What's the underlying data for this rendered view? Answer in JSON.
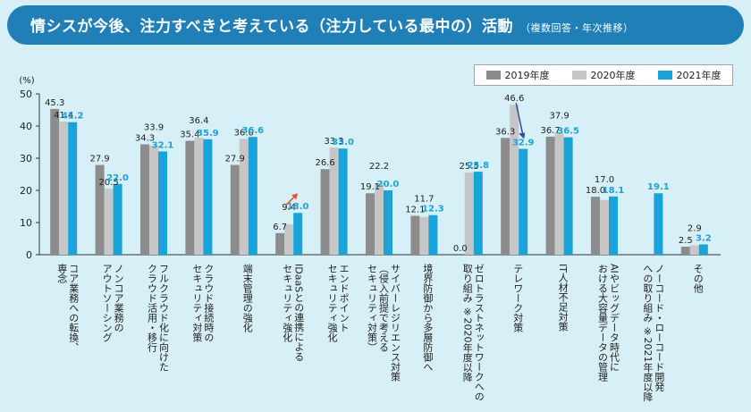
{
  "header": {
    "title": "情シスが今後、注力すべきと考えている（注力している最中の）活動",
    "subtitle": "（複数回答・年次推移）"
  },
  "colors": {
    "banner": "#1f7fb6",
    "background": "#d7eff6",
    "series_2019": "#8c8c8c",
    "series_2020": "#c6c6c6",
    "series_2021": "#1aa3d9",
    "arrow_up": "#e8502a",
    "arrow_down": "#2f4c9a"
  },
  "chart_data": {
    "type": "bar",
    "ylabel": "(%)",
    "ylim": [
      0,
      50
    ],
    "yticks": [
      "0",
      "10",
      "20",
      "30",
      "40",
      "50"
    ],
    "grid": false,
    "legend_position": "top-right",
    "categories": [
      [
        "コア業務への転換、",
        "専念"
      ],
      [
        "ノンコア業務の",
        "アウトソーシング"
      ],
      [
        "フルクラウド化に向けた",
        "クラウド活用・移行"
      ],
      [
        "クラウド接続時の",
        "セキュリティ対策"
      ],
      [
        "端末管理の強化"
      ],
      [
        "IDaaSとの連携による",
        "セキュリティ強化"
      ],
      [
        "エンドポイント",
        "セキュリティ強化"
      ],
      [
        "サイバーレジリエンス対策",
        "（侵入前提で考える",
        "セキュリティ対策）"
      ],
      [
        "境界防御から多層防御へ"
      ],
      [
        "ゼロトラストネットワークへの",
        "取り組み ※2020年度以降"
      ],
      [
        "テレワーク対策"
      ],
      [
        "IT人材不足対策"
      ],
      [
        "AIやビッグデータ時代に",
        "おける大容量データの管理"
      ],
      [
        "ノーコード・ローコード開発",
        "への取り組み ※2021年度以降"
      ],
      [
        "その他"
      ]
    ],
    "series": [
      {
        "name": "2019年度",
        "values": [
          45.3,
          27.9,
          34.3,
          35.4,
          27.9,
          6.7,
          26.6,
          19.1,
          12.1,
          0.0,
          36.3,
          36.7,
          18.0,
          null,
          2.5
        ]
      },
      {
        "name": "2020年度",
        "values": [
          41.4,
          20.5,
          33.9,
          36.4,
          36.0,
          9.4,
          33.3,
          22.2,
          11.7,
          25.5,
          46.6,
          37.9,
          17.0,
          null,
          2.9
        ]
      },
      {
        "name": "2021年度",
        "values": [
          41.2,
          22.0,
          32.1,
          35.9,
          36.6,
          13.0,
          33.0,
          20.0,
          12.3,
          25.8,
          32.9,
          36.5,
          18.1,
          19.1,
          3.2
        ]
      }
    ],
    "data_labels": [
      [
        "45.3",
        "41.4",
        "41.2"
      ],
      [
        "27.9",
        "20.5",
        "22.0"
      ],
      [
        "34.3",
        "33.9",
        "32.1"
      ],
      [
        "35.4",
        "36.4",
        "35.9"
      ],
      [
        "27.9",
        "36.0",
        "36.6"
      ],
      [
        "6.7",
        "9.4",
        "13.0"
      ],
      [
        "26.6",
        "33.3",
        "33.0"
      ],
      [
        "19.1",
        "22.2",
        "20.0"
      ],
      [
        "12.1",
        "11.7",
        "12.3"
      ],
      [
        "0.0",
        "25.5",
        "25.8"
      ],
      [
        "36.3",
        "46.6",
        "32.9"
      ],
      [
        "36.7",
        "37.9",
        "36.5"
      ],
      [
        "18.0",
        "17.0",
        "18.1"
      ],
      [
        null,
        null,
        "19.1"
      ],
      [
        "2.5",
        "2.9",
        "3.2"
      ]
    ],
    "annotations": [
      {
        "category_index": 5,
        "direction": "up"
      },
      {
        "category_index": 10,
        "direction": "down"
      }
    ]
  }
}
